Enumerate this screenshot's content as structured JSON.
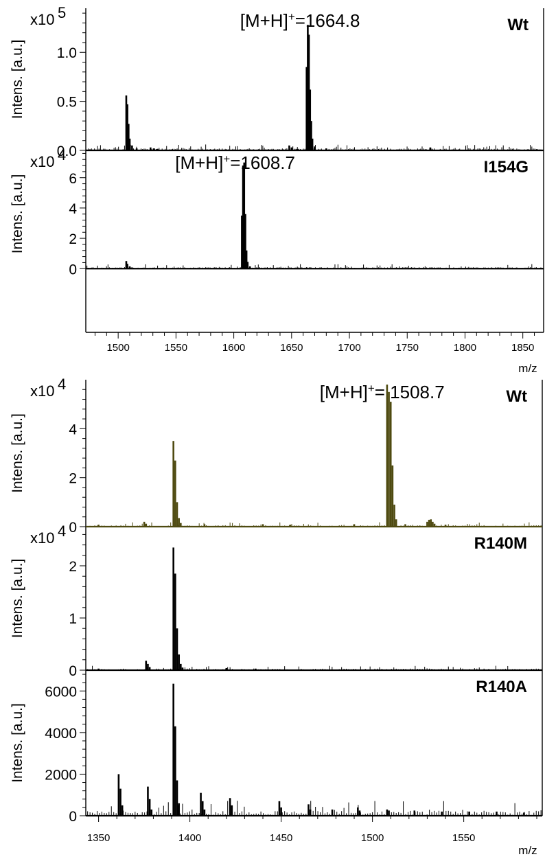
{
  "chart_data": [
    {
      "type": "bar",
      "xlabel": "m/z",
      "xlim": [
        1472,
        1868
      ],
      "xticks": [
        "1500",
        "1550",
        "1600",
        "1650",
        "1700",
        "1750",
        "1800",
        "1850"
      ],
      "panels": [
        {
          "variant": "Wt",
          "ylabel": "Intens. [a.u.]",
          "multiplier": "x10",
          "multiplier_exp": "5",
          "ylim": [
            0,
            1.45
          ],
          "yticks": [
            "0.0",
            "0.5",
            "1.0"
          ],
          "annotation": {
            "prefix": "[M+H]",
            "sup": "+",
            "suffix": "=1664.8",
            "x": 1664.8
          },
          "peaks": [
            [
              1507,
              0.56
            ],
            [
              1508,
              0.47
            ],
            [
              1509,
              0.27
            ],
            [
              1510,
              0.12
            ],
            [
              1512,
              0.05
            ],
            [
              1516,
              0.02
            ],
            [
              1528,
              0.03
            ],
            [
              1531,
              0.02
            ],
            [
              1534,
              0.015
            ],
            [
              1648,
              0.05
            ],
            [
              1650,
              0.03
            ],
            [
              1655,
              0.015
            ],
            [
              1663,
              0.85
            ],
            [
              1664,
              1.28
            ],
            [
              1665,
              1.18
            ],
            [
              1666,
              0.62
            ],
            [
              1667,
              0.3
            ],
            [
              1668,
              0.12
            ],
            [
              1670,
              0.04
            ],
            [
              1680,
              0.02
            ],
            [
              1770,
              0.03
            ]
          ],
          "noise": 0.01
        },
        {
          "variant": "I154G",
          "ylabel": "Intens. [a.u.]",
          "multiplier": "x10",
          "multiplier_exp": "4",
          "ylim": [
            -4.2,
            7.8
          ],
          "yticks": [
            "0",
            "2",
            "4",
            "6"
          ],
          "annotation": {
            "prefix": "[M+H]",
            "sup": "+",
            "suffix": "=1608.7",
            "x": 1608.7
          },
          "peaks": [
            [
              1507,
              0.5
            ],
            [
              1508,
              0.32
            ],
            [
              1510,
              0.15
            ],
            [
              1512,
              0.08
            ],
            [
              1520,
              0.05
            ],
            [
              1530,
              0.06
            ],
            [
              1607,
              3.5
            ],
            [
              1608,
              6.8
            ],
            [
              1609,
              7.0
            ],
            [
              1610,
              3.6
            ],
            [
              1611,
              1.2
            ],
            [
              1612,
              0.45
            ],
            [
              1614,
              0.15
            ],
            [
              1620,
              0.05
            ],
            [
              1650,
              0.05
            ],
            [
              1795,
              0.06
            ]
          ],
          "noise": 0.05
        }
      ]
    },
    {
      "type": "bar",
      "xlabel": "m/z",
      "xlim": [
        1343,
        1593
      ],
      "xticks": [
        "1350",
        "1400",
        "1450",
        "1500",
        "1550"
      ],
      "panels": [
        {
          "variant": "Wt",
          "ylabel": "Intens. [a.u.]",
          "multiplier": "x10",
          "multiplier_exp": "4",
          "ylim": [
            0,
            6.0
          ],
          "yticks": [
            "0",
            "2",
            "4"
          ],
          "color": "#4e4a10",
          "annotation": {
            "prefix": "[M+H]",
            "sup": "+",
            "suffix": "= 1508.7",
            "x": 1508.7
          },
          "peaks": [
            [
              1350,
              0.08
            ],
            [
              1375,
              0.2
            ],
            [
              1376,
              0.12
            ],
            [
              1391,
              3.5
            ],
            [
              1392,
              2.7
            ],
            [
              1393,
              1.0
            ],
            [
              1394,
              0.35
            ],
            [
              1395,
              0.15
            ],
            [
              1408,
              0.1
            ],
            [
              1440,
              0.1
            ],
            [
              1455,
              0.08
            ],
            [
              1490,
              0.1
            ],
            [
              1508,
              5.8
            ],
            [
              1509,
              5.5
            ],
            [
              1510,
              5.1
            ],
            [
              1511,
              2.5
            ],
            [
              1512,
              0.9
            ],
            [
              1513,
              0.3
            ],
            [
              1518,
              0.1
            ],
            [
              1530,
              0.2
            ],
            [
              1531,
              0.28
            ],
            [
              1532,
              0.3
            ],
            [
              1533,
              0.2
            ],
            [
              1534,
              0.12
            ],
            [
              1540,
              0.08
            ]
          ],
          "noise": 0.03
        },
        {
          "variant": "R140M",
          "ylabel": "Intens. [a.u.]",
          "multiplier": "x10",
          "multiplier_exp": "4",
          "ylim": [
            0,
            2.75
          ],
          "yticks": [
            "0",
            "1",
            "2"
          ],
          "peaks": [
            [
              1350,
              0.03
            ],
            [
              1376,
              0.18
            ],
            [
              1377,
              0.12
            ],
            [
              1378,
              0.06
            ],
            [
              1391,
              2.35
            ],
            [
              1392,
              1.85
            ],
            [
              1393,
              0.8
            ],
            [
              1394,
              0.3
            ],
            [
              1395,
              0.12
            ],
            [
              1396,
              0.05
            ],
            [
              1420,
              0.04
            ],
            [
              1436,
              0.03
            ]
          ],
          "noise": 0.015
        },
        {
          "variant": "R140A",
          "ylabel": "Intens. [a.u.]",
          "ylim": [
            0,
            7000
          ],
          "yticks": [
            "0",
            "2000",
            "4000",
            "6000"
          ],
          "peaks": [
            [
              1361,
              2000
            ],
            [
              1362,
              1300
            ],
            [
              1363,
              500
            ],
            [
              1377,
              1400
            ],
            [
              1378,
              800
            ],
            [
              1379,
              300
            ],
            [
              1391,
              6350
            ],
            [
              1392,
              4300
            ],
            [
              1393,
              1700
            ],
            [
              1394,
              600
            ],
            [
              1406,
              1100
            ],
            [
              1407,
              700
            ],
            [
              1408,
              300
            ],
            [
              1422,
              850
            ],
            [
              1423,
              500
            ],
            [
              1449,
              700
            ],
            [
              1450,
              400
            ],
            [
              1465,
              550
            ],
            [
              1466,
              300
            ],
            [
              1478,
              300
            ],
            [
              1492,
              400
            ],
            [
              1493,
              250
            ],
            [
              1508,
              300
            ],
            [
              1509,
              250
            ],
            [
              1523,
              250
            ],
            [
              1538,
              200
            ],
            [
              1553,
              200
            ],
            [
              1568,
              200
            ],
            [
              1583,
              150
            ]
          ],
          "noise": 120
        }
      ]
    }
  ]
}
